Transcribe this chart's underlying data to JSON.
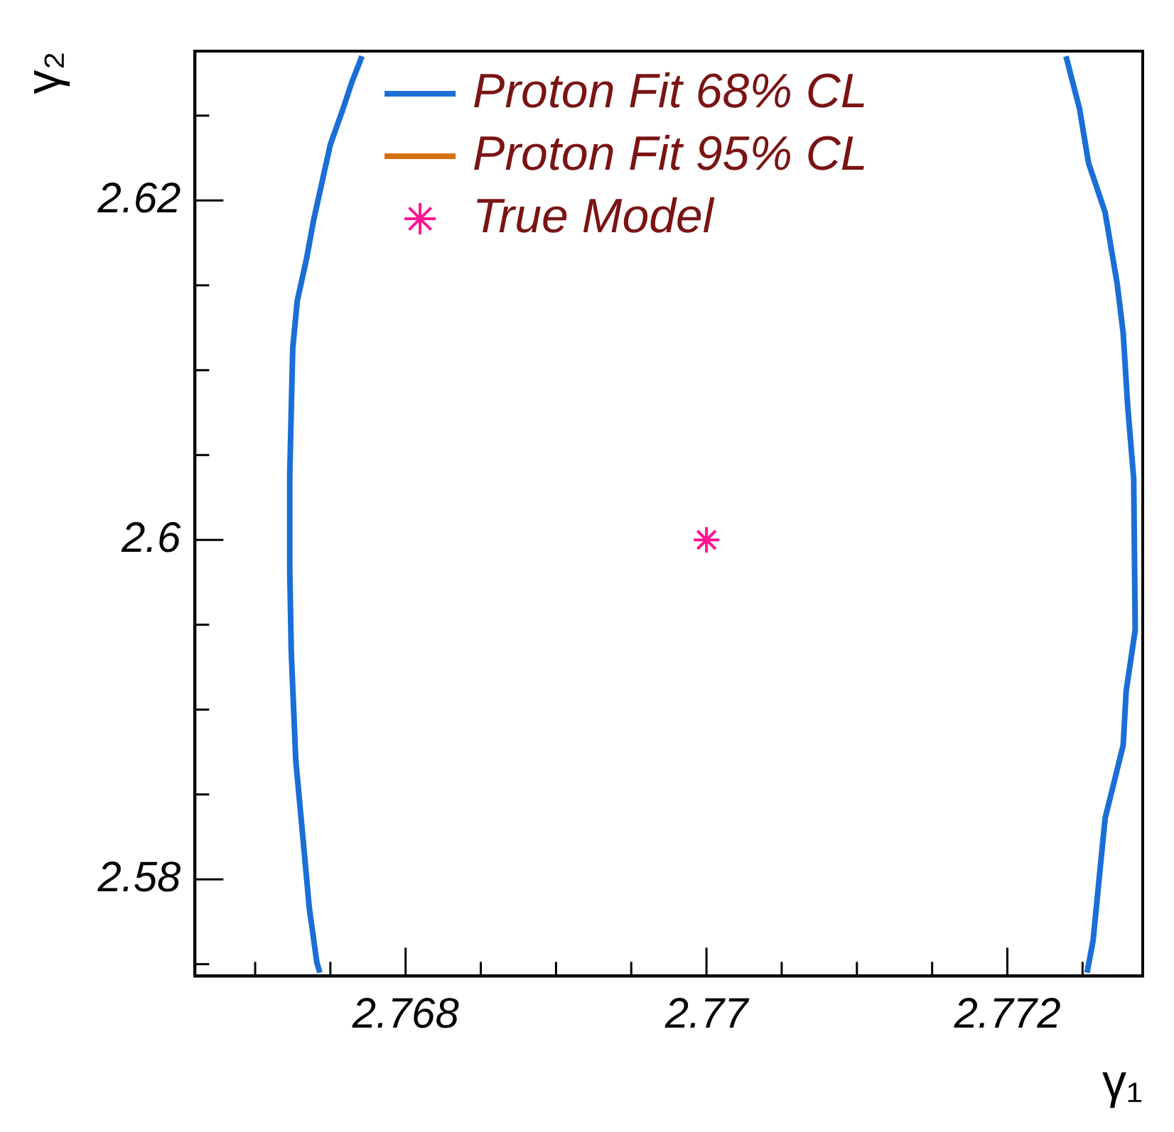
{
  "chart_data": {
    "type": "line",
    "xlabel": "γ₁",
    "ylabel": "γ₂",
    "xlim": [
      2.7666,
      2.7729
    ],
    "ylim": [
      2.5743,
      2.6288
    ],
    "xticks": [
      {
        "value": 2.767,
        "label": null
      },
      {
        "value": 2.7675,
        "label": null
      },
      2.768,
      {
        "value": 2.7685,
        "label": null
      },
      {
        "value": 2.769,
        "label": null
      },
      {
        "value": 2.7695,
        "label": null
      },
      2.77,
      {
        "value": 2.7705,
        "label": null
      },
      {
        "value": 2.771,
        "label": null
      },
      {
        "value": 2.7715,
        "label": null
      },
      2.772,
      {
        "value": 2.7725,
        "label": null
      }
    ],
    "yticks": [
      {
        "value": 2.575,
        "label": null
      },
      2.58,
      {
        "value": 2.585,
        "label": null
      },
      {
        "value": 2.59,
        "label": null
      },
      {
        "value": 2.595,
        "label": null
      },
      2.6,
      {
        "value": 2.605,
        "label": null
      },
      {
        "value": 2.61,
        "label": null
      },
      {
        "value": 2.615,
        "label": null
      },
      2.62,
      {
        "value": 2.625,
        "label": null
      }
    ],
    "legend": "top left",
    "grid": false,
    "series": [
      {
        "name": "Proton Fit 68% CL",
        "type": "line",
        "color": "#1a6fd6",
        "x": [
          2.76771,
          2.76764,
          2.76758,
          2.7675,
          2.76745,
          2.76739,
          2.76734,
          2.76728,
          2.76725,
          2.76724,
          2.76723,
          2.76723,
          2.76724,
          2.76727,
          2.76732,
          2.76736,
          2.76741,
          2.76743,
          null,
          2.77239,
          2.77248,
          2.77254,
          2.77265,
          2.77273,
          2.77277,
          2.7728,
          2.77284,
          2.77285,
          2.77279,
          2.77277,
          2.77272,
          2.77265,
          2.77261,
          2.77257,
          2.77253
        ],
        "values": [
          2.6285,
          2.6269,
          2.6253,
          2.6233,
          2.6213,
          2.6189,
          2.6165,
          2.6141,
          2.6113,
          2.6077,
          2.6038,
          2.5982,
          2.5934,
          2.587,
          2.5822,
          2.5783,
          2.5751,
          2.5745,
          null,
          2.6285,
          2.6254,
          2.6222,
          2.6193,
          2.6151,
          2.6122,
          2.6079,
          2.6036,
          2.5947,
          2.5911,
          2.5879,
          2.5861,
          2.5836,
          2.58,
          2.5764,
          2.5745
        ]
      },
      {
        "name": "Proton Fit 95% CL",
        "type": "line",
        "color": "#d2700e"
      },
      {
        "name": "True Model",
        "type": "scatter",
        "marker": "cross",
        "color": "#ff1493",
        "x": [
          2.77
        ],
        "values": [
          2.6
        ]
      }
    ]
  }
}
